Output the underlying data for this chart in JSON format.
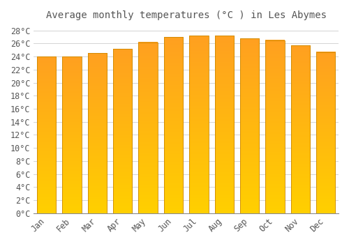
{
  "title": "Average monthly temperatures (°C ) in Les Abymes",
  "months": [
    "Jan",
    "Feb",
    "Mar",
    "Apr",
    "May",
    "Jun",
    "Jul",
    "Aug",
    "Sep",
    "Oct",
    "Nov",
    "Dec"
  ],
  "temperatures": [
    24.0,
    24.0,
    24.5,
    25.2,
    26.2,
    27.0,
    27.2,
    27.2,
    26.8,
    26.5,
    25.7,
    24.7
  ],
  "bar_color_bottom": "#FFD000",
  "bar_color_top": "#FFA020",
  "bar_edge_color": "#CC8800",
  "background_color": "#FFFFFF",
  "grid_color": "#CCCCCC",
  "text_color": "#555555",
  "ylim": [
    0,
    29
  ],
  "yticks": [
    0,
    2,
    4,
    6,
    8,
    10,
    12,
    14,
    16,
    18,
    20,
    22,
    24,
    26,
    28
  ],
  "title_fontsize": 10,
  "tick_fontsize": 8.5,
  "bar_width": 0.75
}
